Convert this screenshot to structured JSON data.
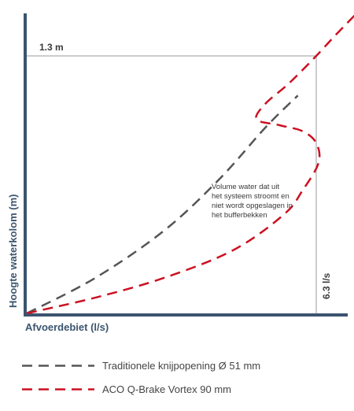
{
  "chart_data": {
    "type": "line",
    "xlabel": "Afvoerdebiet (l/s)",
    "ylabel": "Hoogte waterkolom (m)",
    "design_head_label": "1.3 m",
    "design_flow_label": "6.3 l/s",
    "design_head_m": 1.3,
    "design_flow_ls": 6.3,
    "annotation": [
      "Volume water dat uit",
      "het systeem stroomt en",
      "niet wordt opgeslagen in",
      "het bufferbekken"
    ],
    "series": [
      {
        "name": "Traditionele knijpopening Ø 51 mm",
        "color": "#555555",
        "x": [
          0,
          1.5,
          3.0,
          4.2,
          5.2,
          5.9
        ],
        "y": [
          0,
          0.18,
          0.42,
          0.68,
          0.94,
          1.1
        ]
      },
      {
        "name": "ACO Q-Brake Vortex 90 mm",
        "color": "#cc1122",
        "x": [
          0,
          1.5,
          3.0,
          4.5,
          5.6,
          6.0,
          6.35,
          6.3,
          6.0,
          5.5,
          5.0,
          5.2,
          5.7,
          6.3,
          6.7,
          7.2
        ],
        "y": [
          0,
          0.08,
          0.18,
          0.32,
          0.5,
          0.62,
          0.76,
          0.86,
          0.92,
          0.95,
          0.98,
          1.06,
          1.16,
          1.3,
          1.4,
          1.52
        ]
      }
    ],
    "xlim": [
      0,
      7.2
    ],
    "ylim": [
      0,
      1.55
    ]
  },
  "colors": {
    "axis": "#3a5570",
    "guide": "#999999"
  }
}
